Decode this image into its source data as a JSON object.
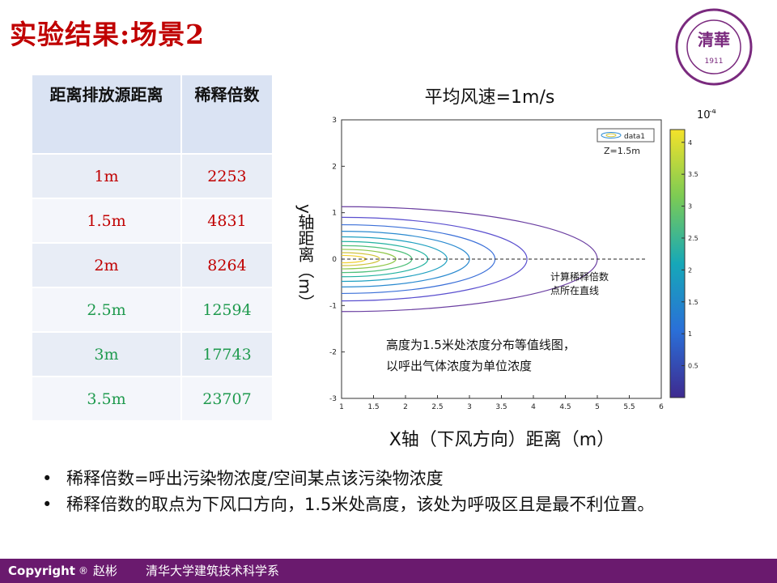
{
  "slide_title": "实验结果:场景2",
  "logo_year": "1911",
  "table": {
    "headers": [
      "距离排放源距离",
      "稀释倍数"
    ],
    "rows": [
      {
        "distance": "1m",
        "factor": "2253",
        "color": "#c00000"
      },
      {
        "distance": "1.5m",
        "factor": "4831",
        "color": "#c00000"
      },
      {
        "distance": "2m",
        "factor": "8264",
        "color": "#c00000"
      },
      {
        "distance": "2.5m",
        "factor": "12594",
        "color": "#1f9a4e"
      },
      {
        "distance": "3m",
        "factor": "17743",
        "color": "#1f9a4e"
      },
      {
        "distance": "3.5m",
        "factor": "23707",
        "color": "#1f9a4e"
      }
    ]
  },
  "chart_data": {
    "type": "contour",
    "title": "平均风速=1m/s",
    "xlabel": "X轴（下风方向）距离（m）",
    "ylabel": "y轴距离（m）",
    "xlim": [
      1,
      6
    ],
    "ylim": [
      -3,
      3
    ],
    "x_ticks": [
      "1",
      "1.5",
      "2",
      "2.5",
      "3",
      "3.5",
      "4",
      "4.5",
      "5",
      "5.5",
      "6"
    ],
    "y_ticks": [
      "3",
      "2",
      "1",
      "0",
      "-1",
      "-2",
      "-3"
    ],
    "colorbar": {
      "exponent_label": "10",
      "exponent": "-4",
      "ticks": [
        "4",
        "3.5",
        "3",
        "2.5",
        "2",
        "1.5",
        "1",
        "0.5"
      ],
      "range": [
        0,
        4.2
      ]
    },
    "legend": {
      "entry": "data1",
      "note": "Z=1.5m"
    },
    "contour_x_extents": [
      5.0,
      3.9,
      3.4,
      3.0,
      2.65,
      2.35,
      2.1,
      1.85,
      1.6,
      1.38
    ],
    "contour_y_halfwidths": [
      1.13,
      0.9,
      0.74,
      0.6,
      0.48,
      0.38,
      0.29,
      0.21,
      0.14,
      0.08
    ],
    "annotation_line": "计算稀释倍数\n点所在直线",
    "annotation_box": "高度为1.5米处浓度分布等值线图，\n以呼出气体浓度为单位浓度"
  },
  "bullets": [
    "稀释倍数=呼出污染物浓度/空间某点该污染物浓度",
    "稀释倍数的取点为下风口方向，1.5米处高度，该处为呼吸区且是最不利位置。"
  ],
  "footer": {
    "copyright": "Copyright",
    "symbol": "®",
    "author": "赵彬",
    "dept": "清华大学建筑技术科学系"
  },
  "colors": {
    "title_red": "#c00000",
    "footer_purple": "#6a1a6e",
    "table_header": "#dae3f3"
  }
}
